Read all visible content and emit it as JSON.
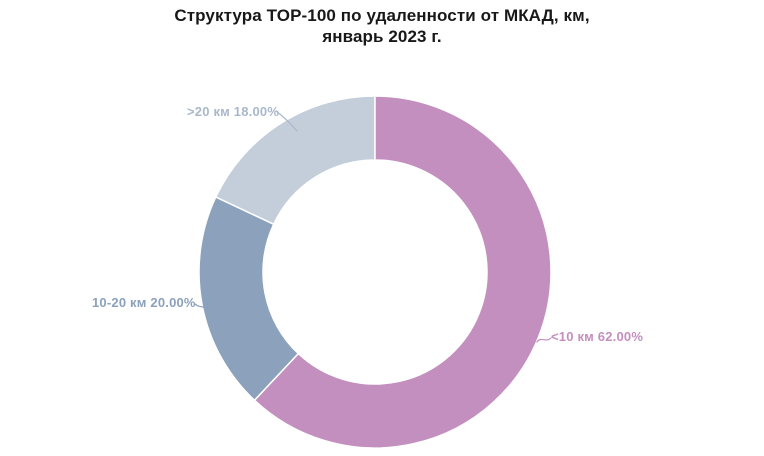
{
  "title": {
    "line1": "Структура TOP-100 по удаленности от МКАД, км,",
    "line2": "январь 2023 г."
  },
  "chart_data": {
    "type": "pie",
    "subtype": "donut",
    "title": "Структура TOP-100 по удаленности от МКАД, км, январь 2023 г.",
    "categories": [
      "<10 км",
      "10-20 км",
      ">20 км"
    ],
    "values": [
      62.0,
      20.0,
      18.0
    ],
    "unit": "%",
    "start_angle_deg": 0,
    "direction": "clockwise",
    "donut_hole_ratio": 0.64,
    "legend": "none",
    "slices": [
      {
        "name": "<10 км",
        "value": 62.0,
        "label": "<10 км 62.00%",
        "color": "#c38fbe",
        "label_color": "#c48fbe"
      },
      {
        "name": "10-20 км",
        "value": 20.0,
        "label": "10-20 км 20.00%",
        "color": "#8ba1bc",
        "label_color": "#8ba1bc"
      },
      {
        "name": ">20 км",
        "value": 18.0,
        "label": ">20 км 18.00%",
        "color": "#c4cedb",
        "label_color": "#a9b8cb"
      }
    ]
  }
}
